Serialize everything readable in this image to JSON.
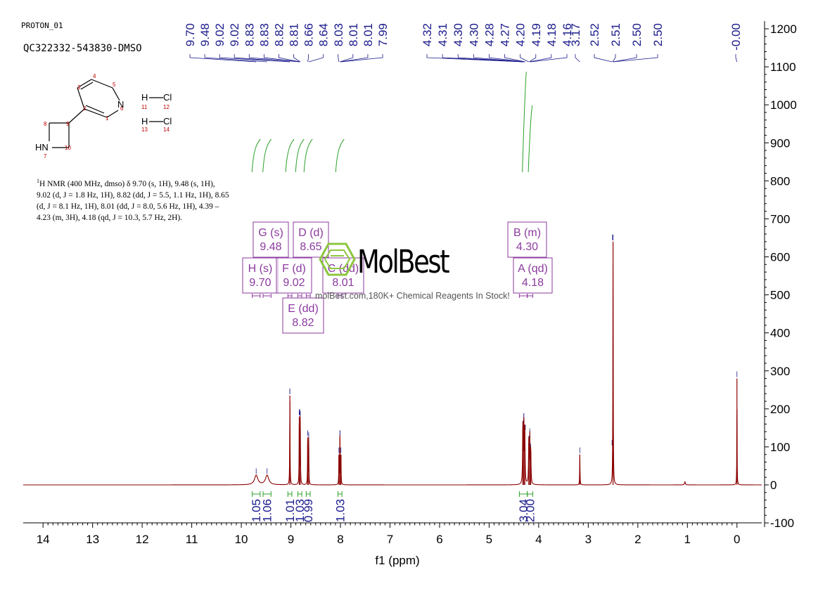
{
  "header": {
    "experiment": "PROTON_01",
    "sample": "QC322332-543830-DMSO"
  },
  "structure": {
    "atoms": [
      "1",
      "2",
      "3",
      "4",
      "5",
      "6",
      "7",
      "8",
      "9",
      "10",
      "11",
      "12",
      "13",
      "14"
    ],
    "labels": {
      "n": "N",
      "hn": "HN",
      "h1": "H",
      "cl1": "Cl",
      "h2": "H",
      "cl2": "Cl"
    }
  },
  "nmr_description": {
    "line1": "H NMR (400 MHz, dmso) δ 9.70 (s, 1H), 9.48 (s, 1H),",
    "sup": "1",
    "line2": "9.02 (d, J = 1.8 Hz, 1H), 8.82 (dd, J = 5.5, 1.1 Hz, 1H), 8.65",
    "line3": "(d, J = 8.1 Hz, 1H), 8.01 (dd, J = 8.0, 5.6 Hz, 1H), 4.39 –",
    "line4": "4.23 (m, 3H), 4.18 (qd, J = 10.3, 5.7 Hz, 2H)."
  },
  "watermark": {
    "brand": "MolBest",
    "tagline": "molBest.com,180K+ Chemical Reagents In Stock!"
  },
  "colors": {
    "spectrum": "#8b0000",
    "peak_labels": "#1a1a8c",
    "integrals": "#2ca02c",
    "multiplet_box": "#8b3a9e",
    "logo_green": "#8dc63f"
  },
  "chart_data": {
    "type": "line",
    "xlabel": "f1 (ppm)",
    "xlim": [
      14.4,
      -0.5
    ],
    "ylim": [
      -100,
      1200
    ],
    "x_ticks": [
      14,
      13,
      12,
      11,
      10,
      9,
      8,
      7,
      6,
      5,
      4,
      3,
      2,
      1,
      0
    ],
    "y_ticks": [
      1200,
      1100,
      1000,
      900,
      800,
      700,
      600,
      500,
      400,
      300,
      200,
      100,
      0,
      -100
    ],
    "peak_labels": [
      "9.70",
      "9.48",
      "9.02",
      "9.02",
      "8.83",
      "8.83",
      "8.82",
      "8.81",
      "8.66",
      "8.64",
      "8.03",
      "8.01",
      "8.01",
      "7.99",
      "4.32",
      "4.31",
      "4.30",
      "4.30",
      "4.28",
      "4.27",
      "4.20",
      "4.19",
      "4.18",
      "4.16",
      "3.17",
      "2.52",
      "2.51",
      "2.50",
      "2.50",
      "-0.00"
    ],
    "peaks": [
      {
        "ppm": 9.7,
        "height": 25,
        "width": 0.04
      },
      {
        "ppm": 9.48,
        "height": 25,
        "width": 0.04
      },
      {
        "ppm": 9.02,
        "height": 235,
        "width": 0.004
      },
      {
        "ppm": 8.83,
        "height": 180,
        "width": 0.004
      },
      {
        "ppm": 8.81,
        "height": 175,
        "width": 0.004
      },
      {
        "ppm": 8.66,
        "height": 125,
        "width": 0.004
      },
      {
        "ppm": 8.64,
        "height": 120,
        "width": 0.004
      },
      {
        "ppm": 8.03,
        "height": 80,
        "width": 0.004
      },
      {
        "ppm": 8.01,
        "height": 125,
        "width": 0.004
      },
      {
        "ppm": 7.99,
        "height": 80,
        "width": 0.004
      },
      {
        "ppm": 4.32,
        "height": 150,
        "width": 0.006
      },
      {
        "ppm": 4.3,
        "height": 170,
        "width": 0.006
      },
      {
        "ppm": 4.28,
        "height": 140,
        "width": 0.006
      },
      {
        "ppm": 4.2,
        "height": 110,
        "width": 0.006
      },
      {
        "ppm": 4.18,
        "height": 130,
        "width": 0.006
      },
      {
        "ppm": 4.16,
        "height": 90,
        "width": 0.006
      },
      {
        "ppm": 3.17,
        "height": 80,
        "width": 0.004
      },
      {
        "ppm": 2.5,
        "height": 640,
        "width": 0.004
      },
      {
        "ppm": 0.0,
        "height": 280,
        "width": 0.003
      },
      {
        "ppm": 1.05,
        "height": 8,
        "width": 0.01
      }
    ],
    "integrals": [
      {
        "from": 9.78,
        "to": 9.62,
        "value": "1.05"
      },
      {
        "from": 9.56,
        "to": 9.4,
        "value": "1.06"
      },
      {
        "from": 9.06,
        "to": 8.98,
        "value": "1.01"
      },
      {
        "from": 8.86,
        "to": 8.78,
        "value": "1.03"
      },
      {
        "from": 8.69,
        "to": 8.61,
        "value": "0.99"
      },
      {
        "from": 8.05,
        "to": 7.97,
        "value": "1.03"
      },
      {
        "from": 4.39,
        "to": 4.23,
        "value": "3.04"
      },
      {
        "from": 4.23,
        "to": 4.12,
        "value": "2.00"
      }
    ],
    "multiplets": [
      {
        "id": "G (s)",
        "ppm": "9.48"
      },
      {
        "id": "D (d)",
        "ppm": "8.65"
      },
      {
        "id": "H (s)",
        "ppm": "9.70"
      },
      {
        "id": "F (d)",
        "ppm": "9.02"
      },
      {
        "id": "C (dd)",
        "ppm": "8.01"
      },
      {
        "id": "E (dd)",
        "ppm": "8.82"
      },
      {
        "id": "B (m)",
        "ppm": "4.30"
      },
      {
        "id": "A (qd)",
        "ppm": "4.18"
      }
    ]
  }
}
